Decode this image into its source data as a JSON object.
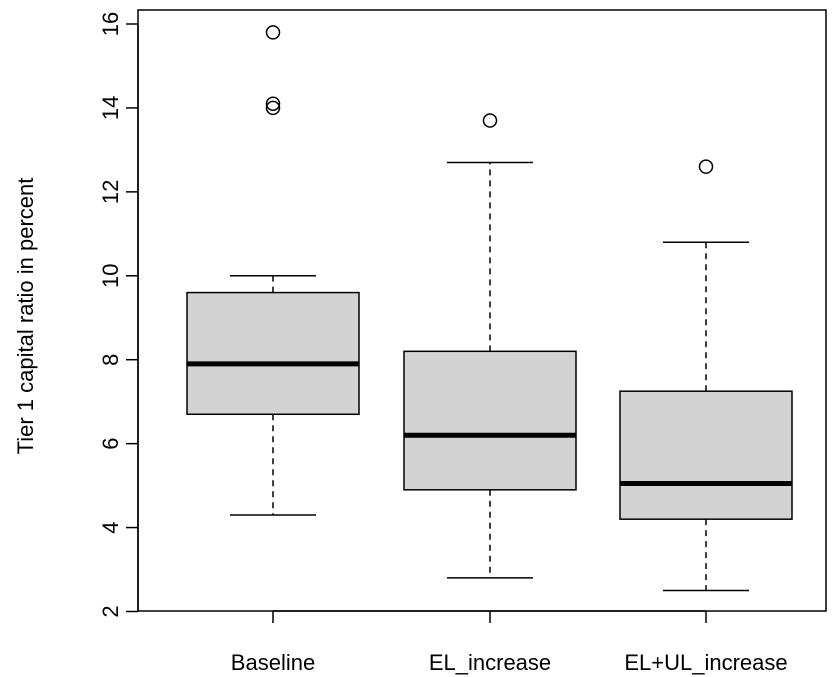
{
  "chart_data": {
    "type": "boxplot",
    "title": "",
    "xlabel": "",
    "ylabel": "Tier 1 capital ratio in percent",
    "ylim": [
      2,
      16
    ],
    "y_ticks": [
      2,
      4,
      6,
      8,
      10,
      12,
      14,
      16
    ],
    "y_tick_labels": [
      "2",
      "4",
      "6",
      "8",
      "10",
      "12",
      "14",
      "16"
    ],
    "grid": false,
    "legend": "none",
    "categories": [
      "Baseline",
      "EL_increase",
      "EL+UL_increase"
    ],
    "boxes": [
      {
        "whisker_low": 4.3,
        "q1": 6.7,
        "median": 7.9,
        "q3": 9.6,
        "whisker_high": 10.0,
        "outliers": [
          14.0,
          14.1,
          15.8
        ]
      },
      {
        "whisker_low": 2.8,
        "q1": 4.9,
        "median": 6.2,
        "q3": 8.2,
        "whisker_high": 12.7,
        "outliers": [
          13.7
        ]
      },
      {
        "whisker_low": 2.5,
        "q1": 4.2,
        "median": 5.05,
        "q3": 7.25,
        "whisker_high": 10.8,
        "outliers": [
          12.6
        ]
      }
    ],
    "colors": {
      "box_fill": "#d3d3d3",
      "stroke": "#000000",
      "background": "#ffffff"
    }
  }
}
